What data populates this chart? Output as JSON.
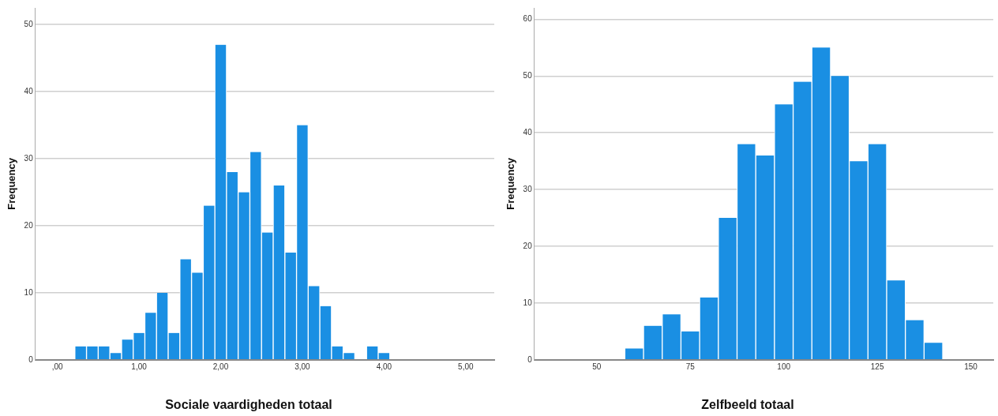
{
  "chart_data": [
    {
      "type": "histogram",
      "xlabel": "Sociale vaardigheden totaal",
      "ylabel": "Frequency",
      "color": "#1a8fe3",
      "bins": [
        0.214,
        0.357,
        0.5,
        0.643,
        0.786,
        0.929,
        1.071,
        1.214,
        1.357,
        1.5,
        1.643,
        1.786,
        1.929,
        2.071,
        2.214,
        2.357,
        2.5,
        2.643,
        2.786,
        2.929,
        3.071,
        3.214,
        3.357,
        3.5,
        3.643,
        3.786,
        3.929,
        4.071
      ],
      "values": [
        2,
        2,
        2,
        1,
        3,
        4,
        7,
        10,
        4,
        15,
        13,
        23,
        47,
        28,
        25,
        31,
        19,
        26,
        16,
        35,
        11,
        8,
        2,
        1,
        0,
        2,
        1
      ],
      "xlim": [
        -0.27,
        5.35
      ],
      "xticks": [
        {
          "value": 0,
          "label": ",00"
        },
        {
          "value": 1,
          "label": "1,00"
        },
        {
          "value": 2,
          "label": "2,00"
        },
        {
          "value": 3,
          "label": "3,00"
        },
        {
          "value": 4,
          "label": "4,00"
        },
        {
          "value": 5,
          "label": "5,00"
        }
      ],
      "ylim": [
        0,
        52.5
      ],
      "yticks": [
        0,
        10,
        20,
        30,
        40,
        50
      ],
      "grid": "y",
      "legend": false
    },
    {
      "type": "histogram",
      "xlabel": "Zelfbeeld totaal",
      "ylabel": "Frequency",
      "color": "#1a8fe3",
      "bins": [
        57.5,
        62.5,
        67.5,
        72.5,
        77.5,
        82.5,
        87.5,
        92.5,
        97.5,
        102.5,
        107.5,
        112.5,
        117.5,
        122.5,
        127.5,
        132.5,
        137.5,
        142.5
      ],
      "values": [
        2,
        6,
        8,
        5,
        11,
        25,
        38,
        36,
        45,
        49,
        55,
        50,
        35,
        38,
        14,
        7,
        3
      ],
      "xlim": [
        33.3,
        156
      ],
      "xticks": [
        50,
        75,
        100,
        125,
        150
      ],
      "ylim": [
        0,
        62
      ],
      "yticks": [
        0,
        10,
        20,
        30,
        40,
        50,
        60
      ],
      "grid": "y",
      "legend": false
    }
  ]
}
